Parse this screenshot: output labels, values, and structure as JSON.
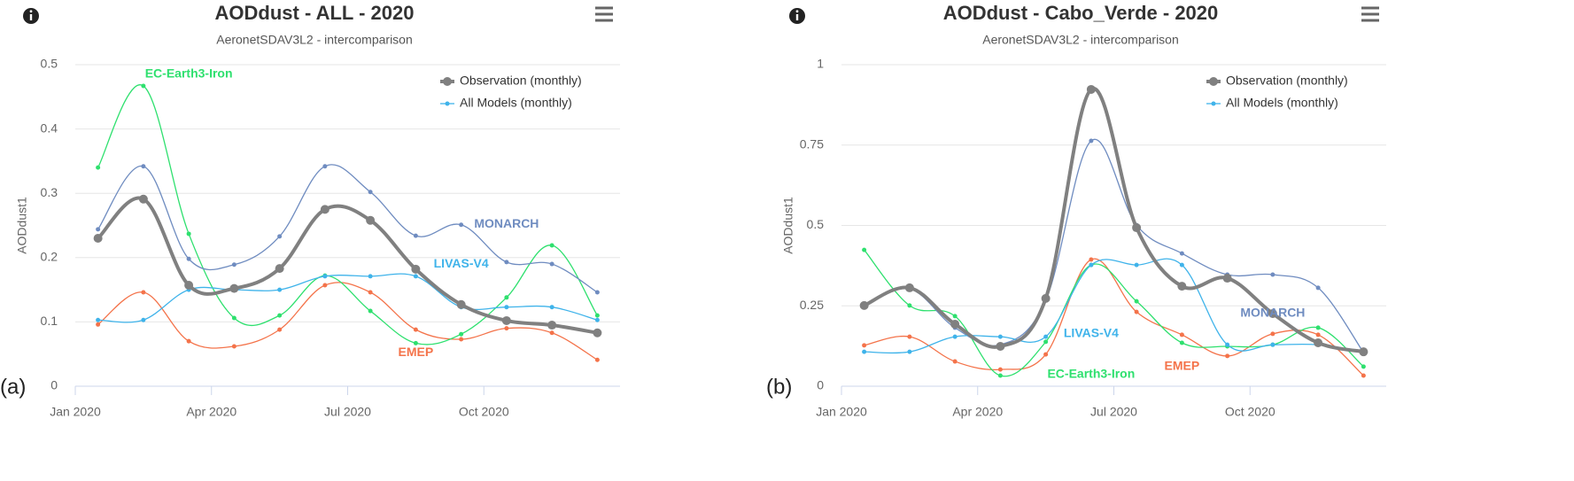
{
  "chart_data": [
    {
      "type": "line",
      "title": "AODdust - ALL - 2020",
      "subtitle": "AeronetSDAV3L2 - intercomparison",
      "panel_label": "(a)",
      "y_label": "AODdust1",
      "x": [
        "2020-01",
        "2020-02",
        "2020-03",
        "2020-04",
        "2020-05",
        "2020-06",
        "2020-07",
        "2020-08",
        "2020-09",
        "2020-10",
        "2020-11",
        "2020-12"
      ],
      "xticks": [
        {
          "value": "2020-01",
          "label": "Jan 2020"
        },
        {
          "value": "2020-04",
          "label": "Apr 2020"
        },
        {
          "value": "2020-07",
          "label": "Jul 2020"
        },
        {
          "value": "2020-10",
          "label": "Oct 2020"
        }
      ],
      "ylim": [
        0,
        0.5
      ],
      "yticks": [
        0,
        0.1,
        0.2,
        0.3,
        0.4,
        0.5
      ],
      "grid": true,
      "legend": "top-right",
      "series": [
        {
          "name": "Observation (monthly)",
          "color": "#808080",
          "width": 4,
          "legend": true,
          "values": [
            0.23,
            0.291,
            0.157,
            0.152,
            0.183,
            0.275,
            0.258,
            0.182,
            0.127,
            0.102,
            0.095,
            0.083
          ]
        },
        {
          "name": "All Models (monthly)",
          "color": "#3fb3ea",
          "width": 1.3,
          "legend": true,
          "values": [
            0.103,
            0.103,
            0.15,
            0.15,
            0.15,
            0.171,
            0.171,
            0.171,
            0.123,
            0.123,
            0.123,
            0.103
          ]
        },
        {
          "color": "#6f8cc0",
          "width": 1.3,
          "legend": false,
          "values": [
            0.244,
            0.342,
            0.198,
            0.189,
            0.233,
            0.342,
            0.302,
            0.234,
            0.251,
            0.193,
            0.19,
            0.146
          ]
        },
        {
          "color": "#2ee06e",
          "width": 1.3,
          "legend": false,
          "values": [
            0.34,
            0.467,
            0.237,
            0.106,
            0.11,
            0.172,
            0.117,
            0.067,
            0.081,
            0.138,
            0.219,
            0.11
          ]
        },
        {
          "color": "#f4734a",
          "width": 1.3,
          "legend": false,
          "values": [
            0.096,
            0.146,
            0.07,
            0.062,
            0.088,
            0.157,
            0.146,
            0.088,
            0.073,
            0.09,
            0.083,
            0.041
          ]
        }
      ],
      "annotations": [
        {
          "text": "EC-Earth3-Iron",
          "x": "2020-03",
          "y": 0.485,
          "color": "#2ee06e"
        },
        {
          "text": "MONARCH",
          "x": "2020-10",
          "y": 0.252,
          "color": "#6f8cc0"
        },
        {
          "text": "LIVAS-V4",
          "x": "2020-09",
          "y": 0.19,
          "color": "#3fb3ea"
        },
        {
          "text": "EMEP",
          "x": "2020-08",
          "y": 0.052,
          "color": "#f4734a"
        }
      ]
    },
    {
      "type": "line",
      "title": "AODdust - Cabo_Verde - 2020",
      "subtitle": "AeronetSDAV3L2 - intercomparison",
      "panel_label": "(b)",
      "y_label": "AODdust1",
      "x": [
        "2020-01",
        "2020-02",
        "2020-03",
        "2020-04",
        "2020-05",
        "2020-06",
        "2020-07",
        "2020-08",
        "2020-09",
        "2020-10",
        "2020-11",
        "2020-12"
      ],
      "xticks": [
        {
          "value": "2020-01",
          "label": "Jan 2020"
        },
        {
          "value": "2020-04",
          "label": "Apr 2020"
        },
        {
          "value": "2020-07",
          "label": "Jul 2020"
        },
        {
          "value": "2020-10",
          "label": "Oct 2020"
        }
      ],
      "ylim": [
        0,
        1
      ],
      "yticks": [
        0,
        0.25,
        0.5,
        0.75,
        1
      ],
      "grid": true,
      "legend": "top-right",
      "series": [
        {
          "name": "Observation (monthly)",
          "color": "#808080",
          "width": 4,
          "legend": true,
          "values": [
            0.251,
            0.306,
            0.193,
            0.124,
            0.273,
            0.923,
            0.493,
            0.311,
            0.336,
            0.226,
            0.135,
            0.107
          ]
        },
        {
          "name": "All Models (monthly)",
          "color": "#3fb3ea",
          "width": 1.3,
          "legend": true,
          "values": [
            0.107,
            0.107,
            0.154,
            0.154,
            0.154,
            0.377,
            0.377,
            0.377,
            0.129,
            0.129,
            0.129,
            0.107
          ]
        },
        {
          "color": "#6f8cc0",
          "width": 1.3,
          "legend": false,
          "values": [
            0.251,
            0.303,
            0.182,
            0.129,
            0.267,
            0.763,
            0.501,
            0.413,
            0.347,
            0.347,
            0.306,
            0.105
          ]
        },
        {
          "color": "#2ee06e",
          "width": 1.3,
          "legend": false,
          "values": [
            0.424,
            0.251,
            0.218,
            0.033,
            0.138,
            0.377,
            0.264,
            0.135,
            0.124,
            0.129,
            0.182,
            0.061
          ]
        },
        {
          "color": "#f4734a",
          "width": 1.3,
          "legend": false,
          "values": [
            0.127,
            0.154,
            0.077,
            0.052,
            0.099,
            0.394,
            0.231,
            0.16,
            0.094,
            0.163,
            0.16,
            0.033
          ]
        }
      ],
      "annotations": [
        {
          "text": "MONARCH",
          "x": "2020-10",
          "y": 0.226,
          "color": "#6f8cc0"
        },
        {
          "text": "LIVAS-V4",
          "x": "2020-06",
          "y": 0.163,
          "color": "#3fb3ea"
        },
        {
          "text": "EC-Earth3-Iron",
          "x": "2020-06",
          "y": 0.036,
          "color": "#2ee06e"
        },
        {
          "text": "EMEP",
          "x": "2020-08",
          "y": 0.061,
          "color": "#f4734a"
        }
      ]
    }
  ]
}
